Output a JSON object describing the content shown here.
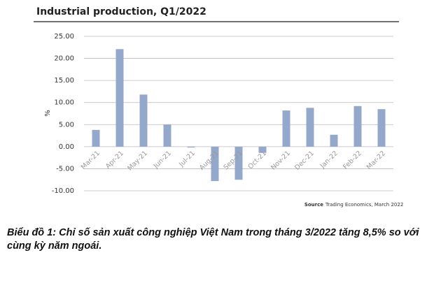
{
  "chart_data": {
    "type": "bar",
    "title": "Industrial production, Q1/2022",
    "ylabel": "%",
    "categories": [
      "Mar-21",
      "Apr-21",
      "May-21",
      "Jun-21",
      "Jul-21",
      "Aug-21",
      "Sep-21",
      "Oct-21",
      "Nov-21",
      "Dec-21",
      "Jan-22",
      "Feb-22",
      "Mar-22"
    ],
    "values": [
      3.8,
      22.1,
      11.8,
      5.0,
      -0.2,
      -7.8,
      -7.5,
      -1.4,
      8.2,
      8.8,
      2.7,
      9.2,
      8.5
    ],
    "color": "#94a8cc",
    "ylim": [
      -10,
      25
    ],
    "yticks": [
      {
        "value": -10,
        "label": "-10.00"
      },
      {
        "value": -5,
        "label": "-5.00"
      },
      {
        "value": 0,
        "label": "0.00"
      },
      {
        "value": 5,
        "label": "5.00"
      },
      {
        "value": 10,
        "label": "10.00"
      },
      {
        "value": 15,
        "label": "15.00"
      },
      {
        "value": 20,
        "label": "20.00"
      },
      {
        "value": 25,
        "label": "25.00"
      }
    ],
    "grid": true,
    "source": {
      "label": "Source",
      "text": "Trading Economics, March 2022"
    }
  },
  "caption": "Biểu đồ 1: Chỉ số sản xuất công nghiệp Việt Nam trong tháng 3/2022 tăng 8,5% so với cùng kỳ năm ngoái."
}
